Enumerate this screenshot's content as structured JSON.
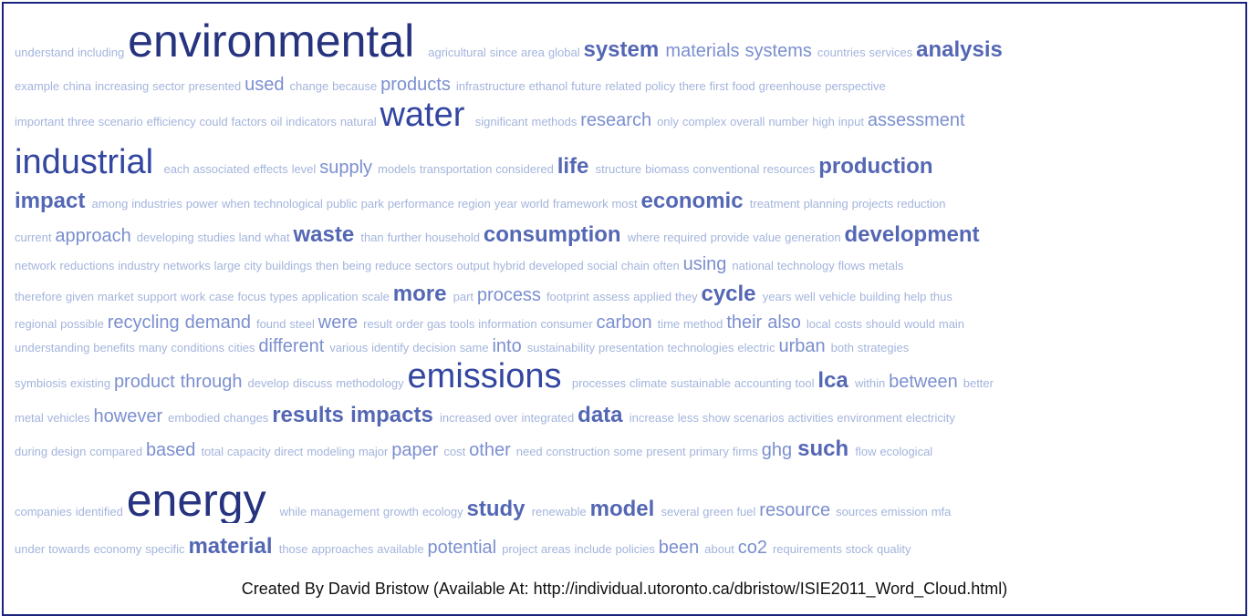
{
  "lines": [
    [
      "understand",
      "including",
      "environmental",
      "agricultural",
      "since",
      "area",
      "global",
      "system",
      "materials",
      "systems",
      "countries",
      "services",
      "analysis"
    ],
    [
      "example",
      "china",
      "increasing",
      "sector",
      "presented",
      "used",
      "change",
      "because",
      "products",
      "infrastructure",
      "ethanol",
      "future",
      "related",
      "policy",
      "there",
      "first",
      "food",
      "greenhouse",
      "perspective"
    ],
    [
      "important",
      "three",
      "scenario",
      "efficiency",
      "could",
      "factors",
      "oil",
      "indicators",
      "natural",
      "water",
      "significant",
      "methods",
      "research",
      "only",
      "complex",
      "overall",
      "number",
      "high",
      "input",
      "assessment"
    ],
    [
      "industrial",
      "each",
      "associated",
      "effects",
      "level",
      "supply",
      "models",
      "transportation",
      "considered",
      "life",
      "structure",
      "biomass",
      "conventional",
      "resources",
      "production"
    ],
    [
      "impact",
      "among",
      "industries",
      "power",
      "when",
      "technological",
      "public",
      "park",
      "performance",
      "region",
      "year",
      "world",
      "framework",
      "most",
      "economic",
      "treatment",
      "planning",
      "projects",
      "reduction"
    ],
    [
      "current",
      "approach",
      "developing",
      "studies",
      "land",
      "what",
      "waste",
      "than",
      "further",
      "household",
      "consumption",
      "where",
      "required",
      "provide",
      "value",
      "generation",
      "development"
    ],
    [
      "network",
      "reductions",
      "industry",
      "networks",
      "large",
      "city",
      "buildings",
      "then",
      "being",
      "reduce",
      "sectors",
      "output",
      "hybrid",
      "developed",
      "social",
      "chain",
      "often",
      "using",
      "national",
      "technology",
      "flows",
      "metals"
    ],
    [
      "therefore",
      "given",
      "market",
      "support",
      "work",
      "case",
      "focus",
      "types",
      "application",
      "scale",
      "more",
      "part",
      "process",
      "footprint",
      "assess",
      "applied",
      "they",
      "cycle",
      "years",
      "well",
      "vehicle",
      "building",
      "help",
      "thus"
    ],
    [
      "regional",
      "possible",
      "recycling",
      "demand",
      "found",
      "steel",
      "were",
      "result",
      "order",
      "gas",
      "tools",
      "information",
      "consumer",
      "carbon",
      "time",
      "method",
      "their",
      "also",
      "local",
      "costs",
      "should",
      "would",
      "main"
    ],
    [
      "understanding",
      "benefits",
      "many",
      "conditions",
      "cities",
      "different",
      "various",
      "identify",
      "decision",
      "same",
      "into",
      "sustainability",
      "presentation",
      "technologies",
      "electric",
      "urban",
      "both",
      "strategies"
    ],
    [
      "symbiosis",
      "existing",
      "product",
      "through",
      "develop",
      "discuss",
      "methodology",
      "emissions",
      "processes",
      "climate",
      "sustainable",
      "accounting",
      "tool",
      "lca",
      "within",
      "between",
      "better"
    ],
    [
      "metal",
      "vehicles",
      "however",
      "embodied",
      "changes",
      "results",
      "impacts",
      "increased",
      "over",
      "integrated",
      "data",
      "increase",
      "less",
      "show",
      "scenarios",
      "activities",
      "environment",
      "electricity"
    ],
    [
      "during",
      "design",
      "compared",
      "based",
      "total",
      "capacity",
      "direct",
      "modeling",
      "major",
      "paper",
      "cost",
      "other",
      "need",
      "construction",
      "some",
      "present",
      "primary",
      "firms",
      "ghg",
      "such",
      "flow",
      "ecological"
    ],
    [
      "companies",
      "identified",
      "energy",
      "while",
      "management",
      "growth",
      "ecology",
      "study",
      "renewable",
      "model",
      "several",
      "green",
      "fuel",
      "resource",
      "sources",
      "emission",
      "mfa"
    ],
    [
      "under",
      "towards",
      "economy",
      "specific",
      "material",
      "those",
      "approaches",
      "available",
      "potential",
      "project",
      "areas",
      "include",
      "policies",
      "been",
      "about",
      "co2",
      "requirements",
      "stock",
      "quality"
    ]
  ],
  "footer": "Created By David Bristow (Available At: http://individual.utoronto.ca/dbristow/ISIE2011_Word_Cloud.html)"
}
